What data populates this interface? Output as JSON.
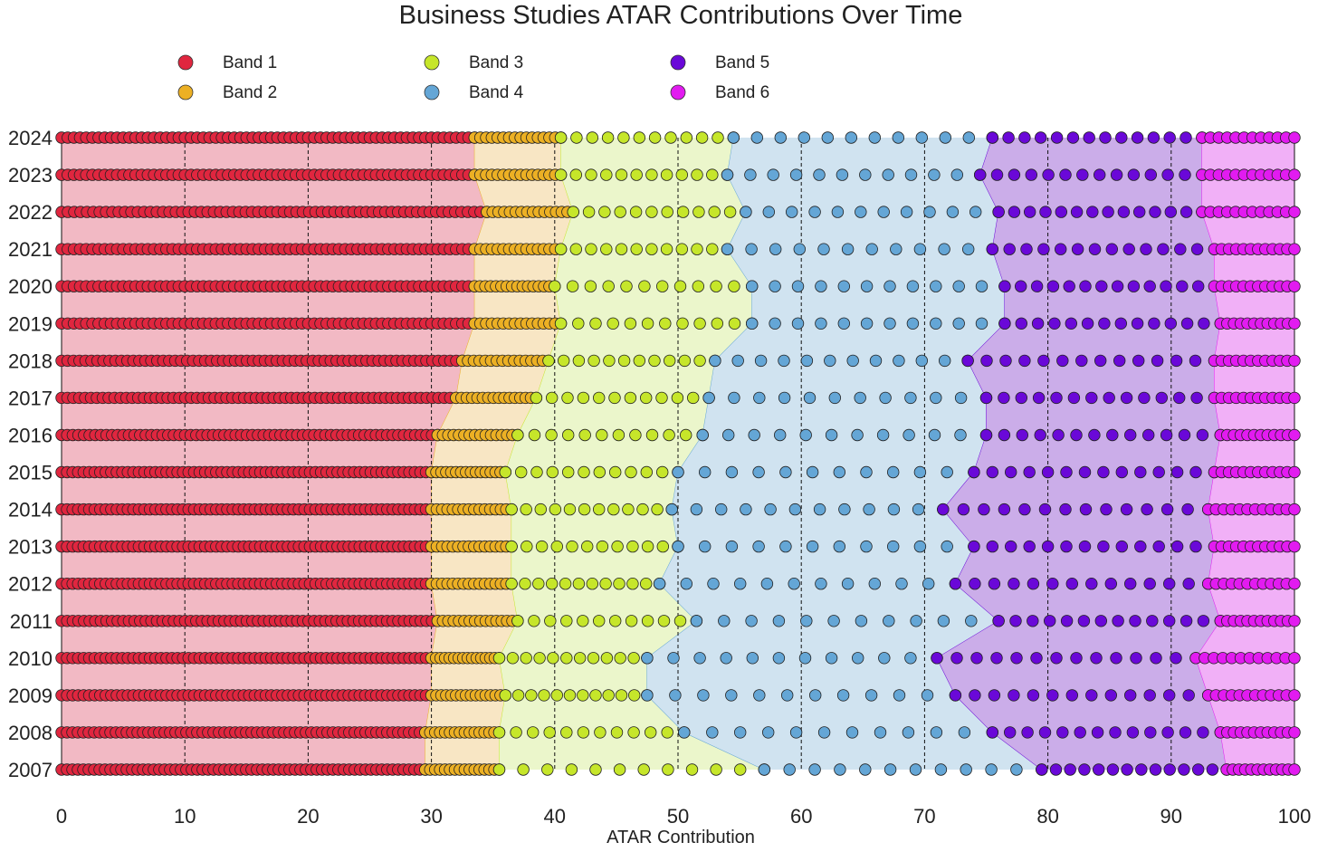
{
  "chart_data": {
    "type": "scatter",
    "title": "Business Studies ATAR Contributions Over Time",
    "xlabel": "ATAR Contribution",
    "ylabel": "",
    "xlim": [
      0,
      100
    ],
    "xticks": [
      "0",
      "10",
      "20",
      "30",
      "40",
      "50",
      "60",
      "70",
      "80",
      "90",
      "100"
    ],
    "years": [
      "2024",
      "2023",
      "2022",
      "2021",
      "2020",
      "2019",
      "2018",
      "2017",
      "2016",
      "2015",
      "2014",
      "2013",
      "2012",
      "2011",
      "2010",
      "2009",
      "2008",
      "2007"
    ],
    "bands": [
      {
        "name": "Band 1",
        "color": "#e0263f",
        "fill": "#f2b9c4"
      },
      {
        "name": "Band 2",
        "color": "#ecb024",
        "fill": "#f8e6c4"
      },
      {
        "name": "Band 3",
        "color": "#c6e62a",
        "fill": "#ebf6cb"
      },
      {
        "name": "Band 4",
        "color": "#64a6d6",
        "fill": "#d0e3f0"
      },
      {
        "name": "Band 5",
        "color": "#6a08d8",
        "fill": "#cbade9"
      },
      {
        "name": "Band 6",
        "color": "#e21bf0",
        "fill": "#f1b0f7"
      }
    ],
    "boundaries": [
      {
        "year": "2024",
        "b1_b2": 33.5,
        "b2_b3": 40.5,
        "b3_b4": 54.5,
        "b4_b5": 75.5,
        "b5_b6": 92.5
      },
      {
        "year": "2023",
        "b1_b2": 33.5,
        "b2_b3": 40.5,
        "b3_b4": 54.0,
        "b4_b5": 74.5,
        "b5_b6": 92.5
      },
      {
        "year": "2022",
        "b1_b2": 34.5,
        "b2_b3": 41.5,
        "b3_b4": 55.5,
        "b4_b5": 76.0,
        "b5_b6": 92.5
      },
      {
        "year": "2021",
        "b1_b2": 33.5,
        "b2_b3": 40.5,
        "b3_b4": 54.0,
        "b4_b5": 75.5,
        "b5_b6": 93.5
      },
      {
        "year": "2020",
        "b1_b2": 33.5,
        "b2_b3": 40.0,
        "b3_b4": 56.0,
        "b4_b5": 76.5,
        "b5_b6": 93.5
      },
      {
        "year": "2019",
        "b1_b2": 33.5,
        "b2_b3": 40.5,
        "b3_b4": 56.0,
        "b4_b5": 76.5,
        "b5_b6": 94.0
      },
      {
        "year": "2018",
        "b1_b2": 32.5,
        "b2_b3": 39.5,
        "b3_b4": 53.0,
        "b4_b5": 73.5,
        "b5_b6": 93.5
      },
      {
        "year": "2017",
        "b1_b2": 32.0,
        "b2_b3": 38.5,
        "b3_b4": 52.5,
        "b4_b5": 75.0,
        "b5_b6": 93.5
      },
      {
        "year": "2016",
        "b1_b2": 30.5,
        "b2_b3": 37.0,
        "b3_b4": 52.0,
        "b4_b5": 75.0,
        "b5_b6": 94.0
      },
      {
        "year": "2015",
        "b1_b2": 30.0,
        "b2_b3": 36.0,
        "b3_b4": 50.0,
        "b4_b5": 74.0,
        "b5_b6": 93.5
      },
      {
        "year": "2014",
        "b1_b2": 30.0,
        "b2_b3": 36.5,
        "b3_b4": 49.5,
        "b4_b5": 71.5,
        "b5_b6": 93.0
      },
      {
        "year": "2013",
        "b1_b2": 30.0,
        "b2_b3": 36.5,
        "b3_b4": 50.0,
        "b4_b5": 74.0,
        "b5_b6": 93.5
      },
      {
        "year": "2012",
        "b1_b2": 30.0,
        "b2_b3": 36.5,
        "b3_b4": 48.5,
        "b4_b5": 72.5,
        "b5_b6": 93.0
      },
      {
        "year": "2011",
        "b1_b2": 30.5,
        "b2_b3": 37.0,
        "b3_b4": 51.5,
        "b4_b5": 76.0,
        "b5_b6": 94.0
      },
      {
        "year": "2010",
        "b1_b2": 30.0,
        "b2_b3": 35.5,
        "b3_b4": 47.5,
        "b4_b5": 71.0,
        "b5_b6": 92.0
      },
      {
        "year": "2009",
        "b1_b2": 30.0,
        "b2_b3": 36.0,
        "b3_b4": 47.5,
        "b4_b5": 72.5,
        "b5_b6": 93.0
      },
      {
        "year": "2008",
        "b1_b2": 29.5,
        "b2_b3": 35.5,
        "b3_b4": 50.5,
        "b4_b5": 75.5,
        "b5_b6": 94.0
      },
      {
        "year": "2007",
        "b1_b2": 29.5,
        "b2_b3": 35.5,
        "b3_b4": 57.0,
        "b4_b5": 79.5,
        "b5_b6": 94.5
      }
    ],
    "points_per_band": [
      68,
      16,
      12,
      12,
      14,
      12
    ]
  }
}
